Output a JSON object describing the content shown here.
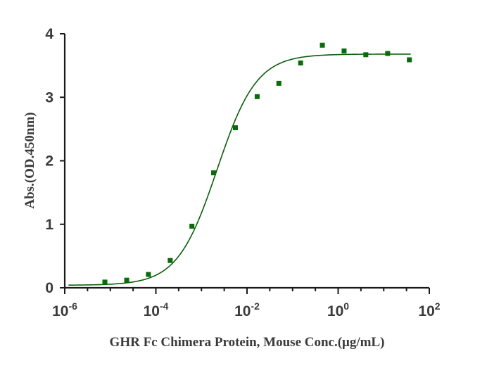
{
  "chart_data": {
    "type": "scatter",
    "title": "",
    "xlabel": "GHR Fc Chimera Protein, Mouse Conc.(μg/mL)",
    "ylabel": "Abs.(OD.450nm)",
    "x_scale": "log10",
    "xlim": [
      1e-06,
      100
    ],
    "ylim": [
      0,
      4
    ],
    "x_ticks": [
      {
        "base": "10",
        "exp": "-6"
      },
      {
        "base": "10",
        "exp": "-4"
      },
      {
        "base": "10",
        "exp": "-2"
      },
      {
        "base": "10",
        "exp": "0"
      },
      {
        "base": "10",
        "exp": "2"
      }
    ],
    "y_ticks": [
      "0",
      "1",
      "2",
      "3",
      "4"
    ],
    "y_tick_values": [
      0,
      1,
      2,
      3,
      4
    ],
    "grid": false,
    "legend": "none",
    "colors": {
      "points": "#0b6b0b",
      "curve": "#0b5e0b",
      "axis": "#1a1a1a"
    },
    "series": [
      {
        "x": [
          7.6e-06,
          2.29e-05,
          6.86e-05,
          0.000206,
          0.000617,
          0.00185,
          0.00556,
          0.0167,
          0.05,
          0.15,
          0.45,
          1.35,
          4.05,
          12.2,
          36.5
        ],
        "y": [
          0.09,
          0.12,
          0.21,
          0.43,
          0.97,
          1.81,
          2.52,
          3.01,
          3.22,
          3.54,
          3.82,
          3.73,
          3.67,
          3.69,
          3.59
        ]
      }
    ],
    "fit_curve": {
      "model": "4PL",
      "bottom": 0.04,
      "top": 3.68,
      "ec50": 0.0022,
      "hill": 1.0
    }
  }
}
